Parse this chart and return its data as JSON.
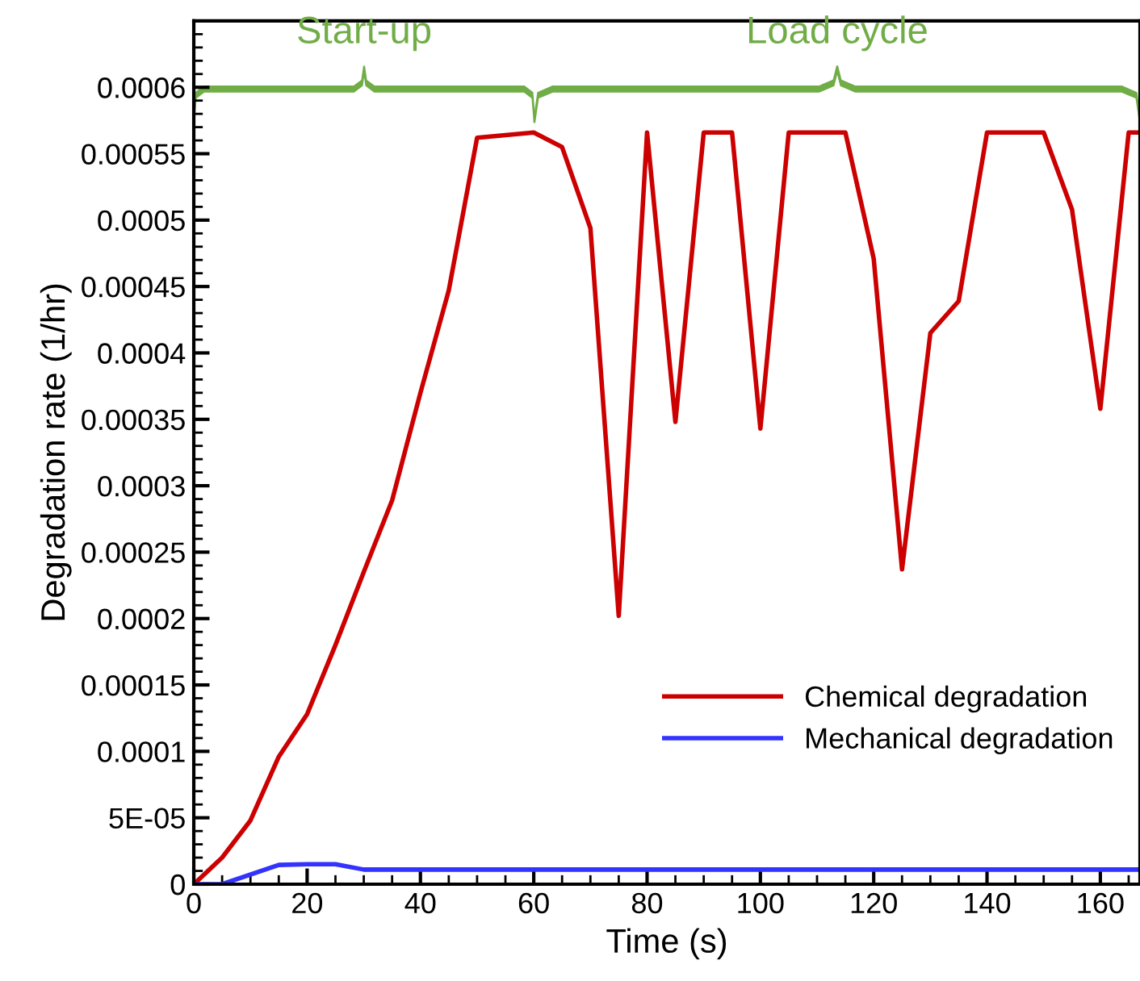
{
  "chart_data": {
    "type": "line",
    "xlabel": "Time (s)",
    "ylabel": "Degradation rate (1/hr)",
    "xlim": [
      0,
      167
    ],
    "ylim": [
      0,
      0.00065
    ],
    "xticks": [
      0,
      20,
      40,
      60,
      80,
      100,
      120,
      140,
      160
    ],
    "yticks": [
      0,
      {
        "value": 5e-05,
        "label": "5E-05"
      },
      0.0001,
      0.00015,
      0.0002,
      0.00025,
      0.0003,
      0.00035,
      0.0004,
      0.00045,
      0.0005,
      0.00055,
      0.0006
    ],
    "legend": "lower right",
    "grid": false,
    "line_style": "solid",
    "marker": "none",
    "annotations": [
      "Start-up",
      "Load cycle"
    ],
    "series": [
      {
        "name": "Chemical degradation",
        "color": "#cc0000",
        "x": [
          0,
          5,
          10,
          15,
          20,
          25,
          30,
          35,
          40,
          45,
          50,
          60,
          65,
          70,
          75,
          80,
          85,
          90,
          95,
          100,
          105,
          115,
          120,
          125,
          130,
          135,
          140,
          150,
          155,
          160,
          165,
          167
        ],
        "values": [
          0,
          2e-05,
          4.8e-05,
          9.6e-05,
          0.000128,
          0.00018,
          0.000235,
          0.000289,
          0.00037,
          0.000447,
          0.000562,
          0.000566,
          0.000555,
          0.000494,
          0.000202,
          0.000566,
          0.000348,
          0.000566,
          0.000566,
          0.000343,
          0.000566,
          0.000566,
          0.000471,
          0.000237,
          0.000415,
          0.000439,
          0.000566,
          0.000566,
          0.000508,
          0.000358,
          0.000566,
          0.000566
        ]
      },
      {
        "name": "Mechanical degradation",
        "color": "#3333ff",
        "x": [
          0,
          5,
          15,
          20,
          25,
          30,
          167
        ],
        "values": [
          0,
          0,
          1.45e-05,
          1.5e-05,
          1.5e-05,
          1.1e-05,
          1.1e-05
        ]
      }
    ]
  }
}
